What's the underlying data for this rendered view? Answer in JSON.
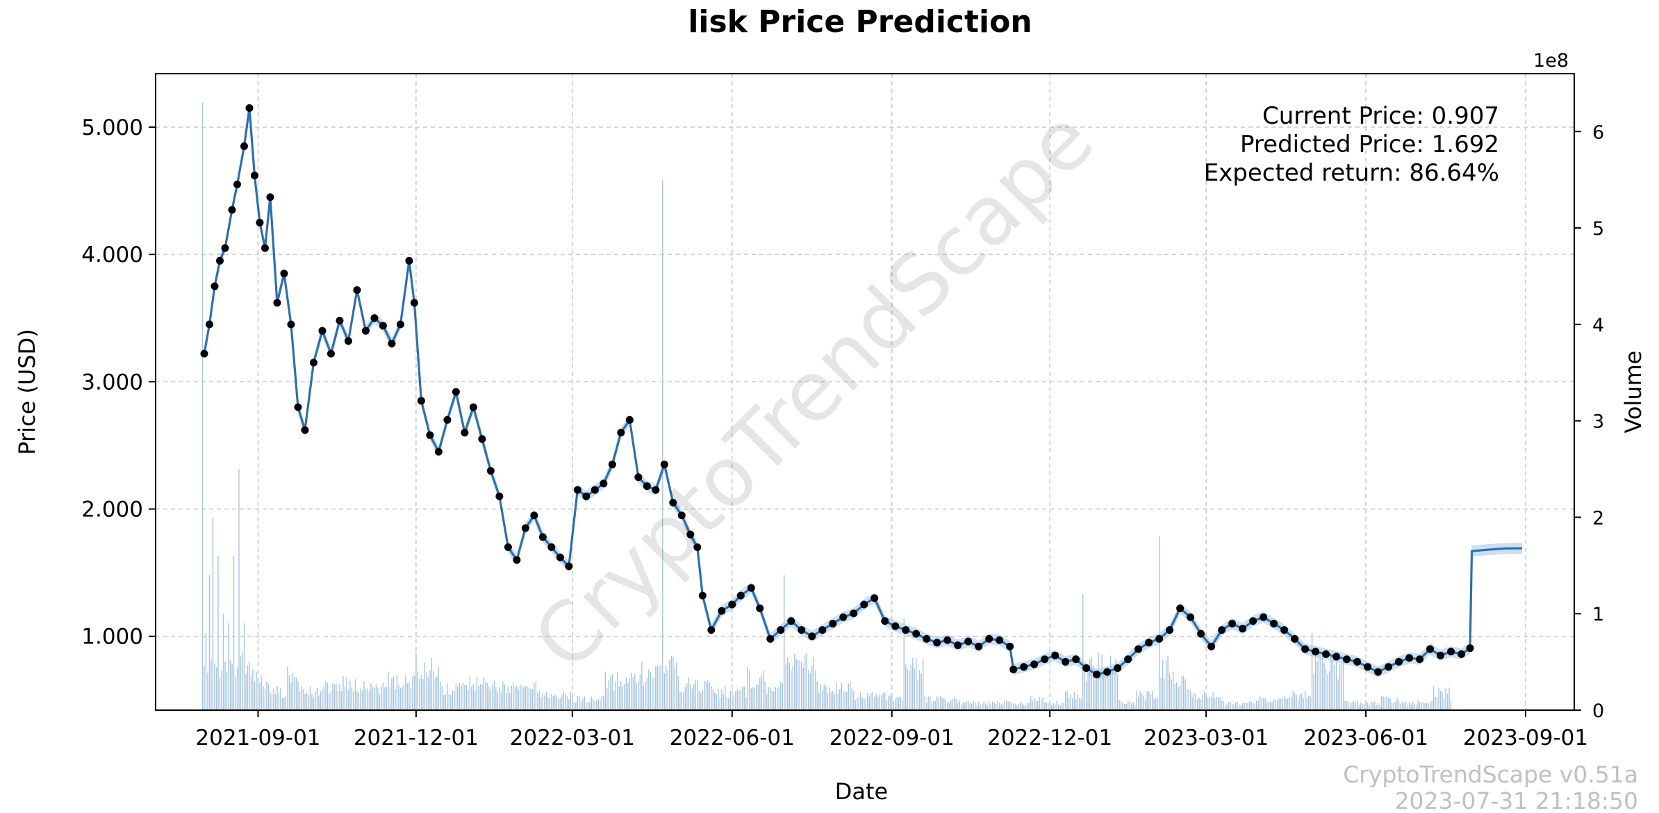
{
  "chart_data": {
    "type": "line",
    "title": "lisk Price Prediction",
    "xlabel": "Date",
    "ylabel": "Price (USD)",
    "y2label": "Volume",
    "y2_multiplier": "1e8",
    "x_ticks": [
      "2021-09-01",
      "2021-12-01",
      "2022-03-01",
      "2022-06-01",
      "2022-09-01",
      "2022-12-01",
      "2023-03-01",
      "2023-06-01",
      "2023-09-01"
    ],
    "y_ticks": [
      "1.000",
      "2.000",
      "3.000",
      "4.000",
      "5.000"
    ],
    "y_tick_values": [
      1,
      2,
      3,
      4,
      5
    ],
    "y2_ticks": [
      "0",
      "1",
      "2",
      "3",
      "4",
      "5",
      "6"
    ],
    "ylim": [
      0.42,
      5.42
    ],
    "y2lim": [
      0,
      6.6
    ],
    "xlim": [
      "2021-07-04",
      "2023-09-29"
    ],
    "grid": true,
    "annotations": {
      "current_price": "Current Price: 0.907",
      "predicted_price": "Predicted Price: 1.692",
      "expected_return": "Expected return: 86.64%"
    },
    "watermark": "CryptoTrendScape",
    "footer": {
      "version": "CryptoTrendScape v0.51a",
      "timestamp": "2023-07-31 21:18:50"
    },
    "colors": {
      "line": "#2f6ead",
      "band": "#9fc6e8",
      "volume": "#a8c5de",
      "points": "#000000"
    },
    "series": [
      {
        "name": "Price",
        "dates": [
          "2021-08-01",
          "2021-08-04",
          "2021-08-07",
          "2021-08-10",
          "2021-08-13",
          "2021-08-17",
          "2021-08-20",
          "2021-08-24",
          "2021-08-27",
          "2021-08-30",
          "2021-09-02",
          "2021-09-05",
          "2021-09-08",
          "2021-09-12",
          "2021-09-16",
          "2021-09-20",
          "2021-09-24",
          "2021-09-28",
          "2021-10-03",
          "2021-10-08",
          "2021-10-13",
          "2021-10-18",
          "2021-10-23",
          "2021-10-28",
          "2021-11-02",
          "2021-11-07",
          "2021-11-12",
          "2021-11-17",
          "2021-11-22",
          "2021-11-27",
          "2021-11-30",
          "2021-12-04",
          "2021-12-09",
          "2021-12-14",
          "2021-12-19",
          "2021-12-24",
          "2021-12-29",
          "2022-01-03",
          "2022-01-08",
          "2022-01-13",
          "2022-01-18",
          "2022-01-23",
          "2022-01-28",
          "2022-02-02",
          "2022-02-07",
          "2022-02-12",
          "2022-02-17",
          "2022-02-22",
          "2022-02-27",
          "2022-03-04",
          "2022-03-09",
          "2022-03-14",
          "2022-03-19",
          "2022-03-24",
          "2022-03-29",
          "2022-04-03",
          "2022-04-08",
          "2022-04-13",
          "2022-04-18",
          "2022-04-23",
          "2022-04-28",
          "2022-05-03",
          "2022-05-08",
          "2022-05-12",
          "2022-05-15",
          "2022-05-20",
          "2022-05-26",
          "2022-06-01",
          "2022-06-06",
          "2022-06-12",
          "2022-06-17",
          "2022-06-23",
          "2022-06-29",
          "2022-07-05",
          "2022-07-11",
          "2022-07-17",
          "2022-07-23",
          "2022-07-29",
          "2022-08-04",
          "2022-08-10",
          "2022-08-16",
          "2022-08-22",
          "2022-08-28",
          "2022-09-03",
          "2022-09-09",
          "2022-09-15",
          "2022-09-21",
          "2022-09-27",
          "2022-10-03",
          "2022-10-09",
          "2022-10-15",
          "2022-10-21",
          "2022-10-27",
          "2022-11-02",
          "2022-11-08",
          "2022-11-10",
          "2022-11-16",
          "2022-11-22",
          "2022-11-28",
          "2022-12-04",
          "2022-12-10",
          "2022-12-16",
          "2022-12-22",
          "2022-12-28",
          "2023-01-03",
          "2023-01-09",
          "2023-01-15",
          "2023-01-21",
          "2023-01-27",
          "2023-02-02",
          "2023-02-08",
          "2023-02-14",
          "2023-02-20",
          "2023-02-26",
          "2023-03-04",
          "2023-03-10",
          "2023-03-16",
          "2023-03-22",
          "2023-03-28",
          "2023-04-03",
          "2023-04-09",
          "2023-04-15",
          "2023-04-21",
          "2023-04-27",
          "2023-05-03",
          "2023-05-09",
          "2023-05-15",
          "2023-05-21",
          "2023-05-27",
          "2023-06-02",
          "2023-06-08",
          "2023-06-14",
          "2023-06-20",
          "2023-06-26",
          "2023-07-02",
          "2023-07-08",
          "2023-07-14",
          "2023-07-20",
          "2023-07-26",
          "2023-07-31"
        ],
        "values": [
          3.22,
          3.45,
          3.75,
          3.95,
          4.05,
          4.35,
          4.55,
          4.85,
          5.15,
          4.62,
          4.25,
          4.05,
          4.45,
          3.62,
          3.85,
          3.45,
          2.8,
          2.62,
          3.15,
          3.4,
          3.22,
          3.48,
          3.32,
          3.72,
          3.4,
          3.5,
          3.44,
          3.3,
          3.45,
          3.95,
          3.62,
          2.85,
          2.58,
          2.45,
          2.7,
          2.92,
          2.6,
          2.8,
          2.55,
          2.3,
          2.1,
          1.7,
          1.6,
          1.85,
          1.95,
          1.78,
          1.7,
          1.62,
          1.55,
          2.15,
          2.1,
          2.15,
          2.2,
          2.35,
          2.6,
          2.7,
          2.25,
          2.18,
          2.15,
          2.35,
          2.05,
          1.95,
          1.8,
          1.7,
          1.32,
          1.05,
          1.2,
          1.25,
          1.32,
          1.38,
          1.22,
          0.98,
          1.05,
          1.12,
          1.05,
          1.0,
          1.05,
          1.1,
          1.15,
          1.18,
          1.25,
          1.3,
          1.12,
          1.08,
          1.05,
          1.02,
          0.98,
          0.95,
          0.97,
          0.93,
          0.96,
          0.92,
          0.98,
          0.97,
          0.92,
          0.74,
          0.76,
          0.78,
          0.82,
          0.85,
          0.8,
          0.82,
          0.75,
          0.7,
          0.72,
          0.75,
          0.82,
          0.9,
          0.95,
          0.98,
          1.05,
          1.22,
          1.15,
          1.02,
          0.92,
          1.05,
          1.1,
          1.06,
          1.12,
          1.15,
          1.1,
          1.05,
          0.98,
          0.9,
          0.88,
          0.86,
          0.84,
          0.82,
          0.8,
          0.76,
          0.72,
          0.76,
          0.8,
          0.83,
          0.82,
          0.9,
          0.85,
          0.88,
          0.86,
          0.907
        ]
      },
      {
        "name": "Prediction",
        "dates": [
          "2023-07-31",
          "2023-08-01",
          "2023-08-10",
          "2023-08-20",
          "2023-08-30"
        ],
        "values": [
          0.907,
          1.67,
          1.68,
          1.69,
          1.692
        ]
      }
    ],
    "volume": {
      "dates": [
        "2021-07-31",
        "2021-08-02",
        "2021-08-04",
        "2021-08-06",
        "2021-08-09",
        "2021-08-12",
        "2021-08-15",
        "2021-08-18",
        "2021-08-21",
        "2021-08-24",
        "2021-08-27",
        "2021-08-31",
        "2021-09-06",
        "2021-09-12",
        "2021-09-18",
        "2021-09-24",
        "2021-10-01",
        "2021-10-10",
        "2021-10-20",
        "2021-11-01",
        "2021-11-15",
        "2021-12-01",
        "2021-12-15",
        "2022-01-01",
        "2022-01-20",
        "2022-02-10",
        "2022-03-01",
        "2022-03-20",
        "2022-04-10",
        "2022-04-22",
        "2022-05-01",
        "2022-05-20",
        "2022-06-10",
        "2022-06-20",
        "2022-07-01",
        "2022-07-20",
        "2022-08-10",
        "2022-09-01",
        "2022-09-08",
        "2022-09-20",
        "2022-10-10",
        "2022-11-01",
        "2022-11-20",
        "2022-12-01",
        "2022-12-10",
        "2022-12-20",
        "2023-01-10",
        "2023-01-20",
        "2023-02-02",
        "2023-02-10",
        "2023-02-20",
        "2023-03-10",
        "2023-04-01",
        "2023-04-20",
        "2023-05-01",
        "2023-05-20",
        "2023-06-01",
        "2023-06-10",
        "2023-06-20",
        "2023-07-01",
        "2023-07-10",
        "2023-07-20"
      ],
      "values": [
        6.3,
        0.8,
        1.4,
        2.0,
        1.6,
        1.0,
        0.9,
        1.6,
        2.5,
        0.9,
        0.5,
        0.4,
        0.3,
        0.25,
        0.45,
        0.3,
        0.25,
        0.3,
        0.35,
        0.3,
        0.4,
        0.6,
        0.3,
        0.35,
        0.3,
        0.2,
        0.15,
        0.4,
        0.5,
        5.5,
        0.35,
        0.25,
        0.45,
        0.3,
        1.4,
        0.3,
        0.2,
        0.15,
        0.95,
        0.15,
        0.1,
        0.1,
        0.15,
        0.1,
        0.2,
        1.2,
        0.1,
        0.2,
        1.8,
        0.4,
        0.2,
        0.1,
        0.15,
        0.2,
        0.8,
        0.1,
        0.1,
        0.15,
        0.1,
        0.1,
        0.25,
        0.1
      ]
    }
  }
}
